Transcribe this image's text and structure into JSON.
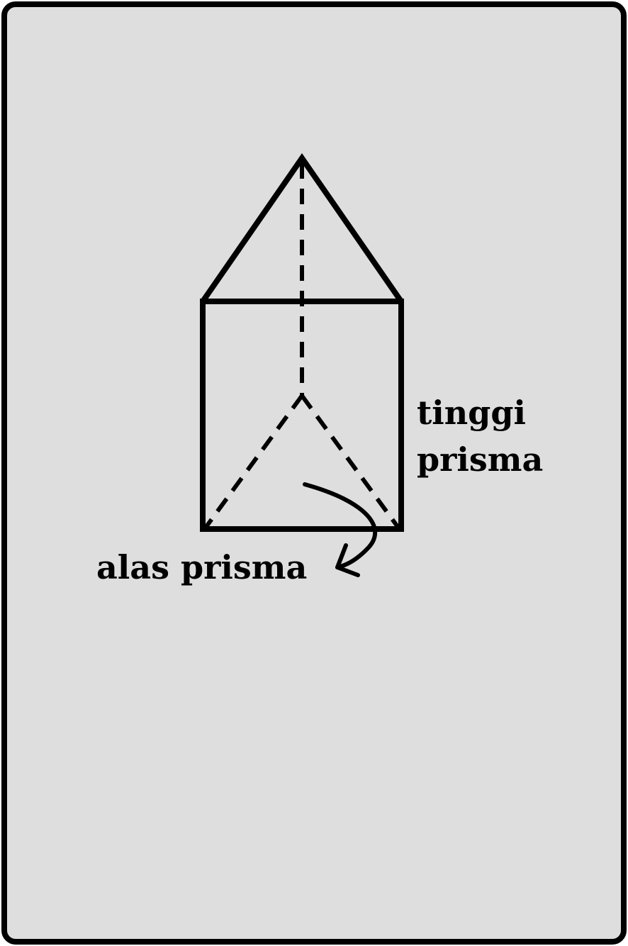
{
  "colors": {
    "background": "#dedede",
    "stroke": "#000000"
  },
  "labels": {
    "height_line1": "tinggi",
    "height_line2": "prisma",
    "base": "alas prisma"
  }
}
